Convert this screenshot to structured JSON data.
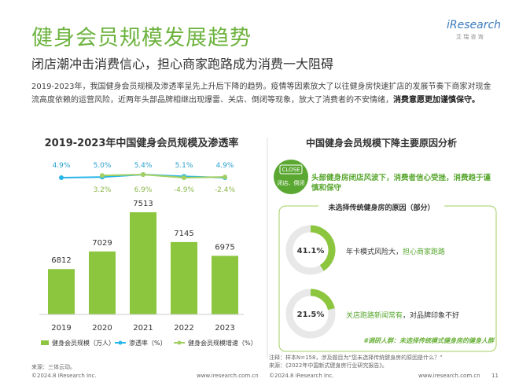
{
  "header": {
    "title": "健身会员规模发展趋势",
    "subtitle": "闭店潮冲击消费信心，担心商家跑路成为消费一大阻碍",
    "logo": "iResearch",
    "logo_sub": "艾 瑞 咨 询"
  },
  "intro": {
    "text": "2019-2023年，我国健身会员规模及渗透率呈先上升后下降的趋势。疫情等因素放大了以往健身房快速扩店的发展节奏下商家对现金流高度依赖的运营风险，近两年头部品牌相继出现爆雷、关店、倒闭等现象，放大了消费者的不安情绪，",
    "bold": "消费意愿更加谨慎保守。"
  },
  "chart_data": {
    "type": "bar",
    "title": "2019-2023年中国健身会员规模及渗透率",
    "categories": [
      "2019",
      "2020",
      "2021",
      "2022",
      "2023"
    ],
    "series": [
      {
        "name": "健身会员规模（万人）",
        "color": "#8cc63f",
        "values": [
          6812,
          7029,
          7513,
          7145,
          6975
        ]
      },
      {
        "name": "渗透率（%）",
        "color": "#29b6e8",
        "values": [
          4.9,
          5.0,
          5.4,
          5.1,
          4.9
        ],
        "value_labels": [
          "4.9%",
          "5.0%",
          "5.4%",
          "5.1%",
          "4.9%"
        ]
      },
      {
        "name": "健身会员规模增速（%）",
        "color": "#a3cf62",
        "values": [
          null,
          3.2,
          6.9,
          -4.9,
          -2.4
        ],
        "value_labels": [
          null,
          "3.2%",
          "6.9%",
          "-4.9%",
          "-2.4%"
        ]
      }
    ]
  },
  "left_footer": {
    "source": "来源：三体云动。",
    "copyright": "©2024.8 iResearch Inc.",
    "url": "www.iresearch.com.cn"
  },
  "right_panel": {
    "title": "中国健身会员规模下降主要原因分析",
    "icon_text": "CLOSE",
    "icon_caption": "闭店、倒闭",
    "headline": "头部健身房闭店风波下，消费者信心受挫，消费趋于谨慎和保守",
    "box_title": "未选择传统健身房的原因（部分）",
    "items": [
      {
        "value": 41.1,
        "value_label": "41.1%",
        "text": "年卡模式风险大，",
        "highlight": "担心商家跑路"
      },
      {
        "value": 21.5,
        "value_label": "21.5%",
        "highlight": "关店跑路新闻常有",
        "text": "，对品牌印象不好"
      }
    ],
    "tag": "#调研人群：未选择传统模式健身房的健身人群",
    "note": "注释：样本N=158，涉及题目为“您未选择传统健身房的原因是什么？”",
    "source": "来源：《2022年中国新式健身房行业研究报告》。"
  },
  "right_footer": {
    "copyright": "©2024.8 iResearch Inc.",
    "url": "www.iresearch.com.cn",
    "page": "11"
  }
}
